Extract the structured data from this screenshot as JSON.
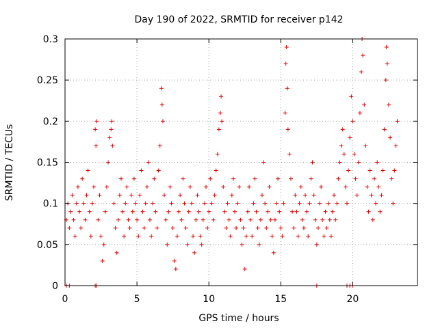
{
  "chart_data": {
    "type": "scatter",
    "title": "Day 190 of 2022, SRMTID for receiver p142",
    "xlabel": "GPS time / hours",
    "ylabel": "SRMTID / TECUs",
    "xlim": [
      0,
      24.5
    ],
    "ylim": [
      0,
      0.3
    ],
    "x_ticks": [
      0,
      5,
      10,
      15,
      20
    ],
    "x_tick_labels": [
      "0",
      "5",
      "10",
      "15",
      "20"
    ],
    "y_ticks": [
      0,
      0.05,
      0.1,
      0.15,
      0.2,
      0.25,
      0.3
    ],
    "y_tick_labels": [
      "0",
      "0.05",
      "0.1",
      "0.15",
      "0.2",
      "0.25",
      "0.3"
    ],
    "grid": true,
    "marker": "+",
    "color": "#dd0000",
    "series": [
      {
        "name": "SRMTID",
        "points": [
          [
            0.1,
            0.08
          ],
          [
            0.2,
            0.1
          ],
          [
            0.3,
            0.07
          ],
          [
            0.4,
            0.09
          ],
          [
            0.5,
            0.11
          ],
          [
            0.6,
            0.08
          ],
          [
            0.7,
            0.06
          ],
          [
            0.8,
            0.1
          ],
          [
            0.9,
            0.12
          ],
          [
            1.0,
            0.09
          ],
          [
            1.1,
            0.07
          ],
          [
            1.2,
            0.13
          ],
          [
            1.3,
            0.1
          ],
          [
            1.4,
            0.08
          ],
          [
            1.5,
            0.11
          ],
          [
            1.6,
            0.14
          ],
          [
            1.7,
            0.09
          ],
          [
            1.8,
            0.06
          ],
          [
            1.9,
            0.1
          ],
          [
            2.0,
            0.12
          ],
          [
            2.1,
            0.19
          ],
          [
            2.15,
            0.17
          ],
          [
            2.2,
            0.2
          ],
          [
            2.3,
            0.08
          ],
          [
            2.4,
            0.11
          ],
          [
            2.5,
            0.06
          ],
          [
            2.6,
            0.03
          ],
          [
            2.7,
            0.05
          ],
          [
            2.8,
            0.09
          ],
          [
            2.9,
            0.12
          ],
          [
            3.0,
            0.15
          ],
          [
            3.1,
            0.18
          ],
          [
            3.2,
            0.19
          ],
          [
            3.25,
            0.2
          ],
          [
            3.3,
            0.17
          ],
          [
            3.4,
            0.1
          ],
          [
            3.5,
            0.07
          ],
          [
            3.6,
            0.04
          ],
          [
            3.7,
            0.08
          ],
          [
            3.8,
            0.11
          ],
          [
            3.9,
            0.13
          ],
          [
            4.0,
            0.09
          ],
          [
            4.1,
            0.06
          ],
          [
            4.2,
            0.1
          ],
          [
            4.3,
            0.12
          ],
          [
            4.4,
            0.08
          ],
          [
            4.5,
            0.07
          ],
          [
            4.6,
            0.11
          ],
          [
            4.7,
            0.09
          ],
          [
            4.8,
            0.13
          ],
          [
            4.9,
            0.1
          ],
          [
            5.0,
            0.08
          ],
          [
            5.1,
            0.06
          ],
          [
            5.2,
            0.11
          ],
          [
            5.3,
            0.14
          ],
          [
            5.4,
            0.09
          ],
          [
            5.5,
            0.07
          ],
          [
            5.6,
            0.1
          ],
          [
            5.7,
            0.12
          ],
          [
            5.8,
            0.15
          ],
          [
            5.9,
            0.08
          ],
          [
            6.0,
            0.06
          ],
          [
            6.1,
            0.1
          ],
          [
            6.2,
            0.13
          ],
          [
            6.3,
            0.09
          ],
          [
            6.4,
            0.07
          ],
          [
            6.5,
            0.14
          ],
          [
            6.6,
            0.17
          ],
          [
            6.7,
            0.24
          ],
          [
            6.75,
            0.22
          ],
          [
            6.8,
            0.2
          ],
          [
            6.9,
            0.11
          ],
          [
            7.0,
            0.08
          ],
          [
            7.1,
            0.05
          ],
          [
            7.2,
            0.09
          ],
          [
            7.3,
            0.12
          ],
          [
            7.4,
            0.1
          ],
          [
            7.5,
            0.07
          ],
          [
            7.6,
            0.03
          ],
          [
            7.7,
            0.02
          ],
          [
            7.8,
            0.06
          ],
          [
            7.9,
            0.09
          ],
          [
            8.0,
            0.11
          ],
          [
            8.1,
            0.08
          ],
          [
            8.2,
            0.13
          ],
          [
            8.3,
            0.1
          ],
          [
            8.4,
            0.07
          ],
          [
            8.5,
            0.05
          ],
          [
            8.6,
            0.09
          ],
          [
            8.7,
            0.12
          ],
          [
            8.8,
            0.1
          ],
          [
            8.9,
            0.06
          ],
          [
            9.0,
            0.04
          ],
          [
            9.1,
            0.08
          ],
          [
            9.2,
            0.11
          ],
          [
            9.3,
            0.09
          ],
          [
            9.4,
            0.06
          ],
          [
            9.5,
            0.05
          ],
          [
            9.6,
            0.08
          ],
          [
            9.7,
            0.1
          ],
          [
            9.8,
            0.12
          ],
          [
            9.9,
            0.07
          ],
          [
            10.0,
            0.09
          ],
          [
            10.1,
            0.13
          ],
          [
            10.2,
            0.1
          ],
          [
            10.3,
            0.08
          ],
          [
            10.4,
            0.11
          ],
          [
            10.5,
            0.14
          ],
          [
            10.6,
            0.16
          ],
          [
            10.7,
            0.19
          ],
          [
            10.8,
            0.21
          ],
          [
            10.85,
            0.23
          ],
          [
            10.9,
            0.2
          ],
          [
            11.0,
            0.12
          ],
          [
            11.1,
            0.09
          ],
          [
            11.2,
            0.07
          ],
          [
            11.3,
            0.1
          ],
          [
            11.4,
            0.08
          ],
          [
            11.5,
            0.06
          ],
          [
            11.6,
            0.11
          ],
          [
            11.7,
            0.13
          ],
          [
            11.8,
            0.09
          ],
          [
            11.9,
            0.07
          ],
          [
            12.0,
            0.1
          ],
          [
            12.1,
            0.12
          ],
          [
            12.2,
            0.08
          ],
          [
            12.3,
            0.05
          ],
          [
            12.4,
            0.07
          ],
          [
            12.5,
            0.02
          ],
          [
            12.6,
            0.06
          ],
          [
            12.7,
            0.09
          ],
          [
            12.8,
            0.12
          ],
          [
            12.9,
            0.08
          ],
          [
            13.0,
            0.06
          ],
          [
            13.1,
            0.1
          ],
          [
            13.2,
            0.13
          ],
          [
            13.3,
            0.09
          ],
          [
            13.4,
            0.07
          ],
          [
            13.5,
            0.05
          ],
          [
            13.6,
            0.08
          ],
          [
            13.7,
            0.11
          ],
          [
            13.8,
            0.15
          ],
          [
            13.9,
            0.1
          ],
          [
            14.0,
            0.07
          ],
          [
            14.1,
            0.09
          ],
          [
            14.2,
            0.12
          ],
          [
            14.3,
            0.08
          ],
          [
            14.4,
            0.06
          ],
          [
            14.5,
            0.04
          ],
          [
            14.6,
            0.08
          ],
          [
            14.7,
            0.1
          ],
          [
            14.8,
            0.13
          ],
          [
            14.9,
            0.09
          ],
          [
            15.0,
            0.07
          ],
          [
            15.1,
            0.06
          ],
          [
            15.2,
            0.1
          ],
          [
            15.3,
            0.21
          ],
          [
            15.35,
            0.27
          ],
          [
            15.4,
            0.29
          ],
          [
            15.45,
            0.24
          ],
          [
            15.5,
            0.19
          ],
          [
            15.6,
            0.16
          ],
          [
            15.7,
            0.13
          ],
          [
            15.8,
            0.09
          ],
          [
            15.9,
            0.07
          ],
          [
            16.0,
            0.11
          ],
          [
            16.1,
            0.09
          ],
          [
            16.2,
            0.06
          ],
          [
            16.3,
            0.1
          ],
          [
            16.4,
            0.12
          ],
          [
            16.5,
            0.08
          ],
          [
            16.6,
            0.07
          ],
          [
            16.7,
            0.11
          ],
          [
            16.8,
            0.09
          ],
          [
            16.9,
            0.06
          ],
          [
            17.0,
            0.1
          ],
          [
            17.1,
            0.13
          ],
          [
            17.2,
            0.15
          ],
          [
            17.3,
            0.11
          ],
          [
            17.4,
            0.08
          ],
          [
            17.5,
            0.05
          ],
          [
            17.6,
            0.07
          ],
          [
            17.7,
            0.1
          ],
          [
            17.8,
            0.12
          ],
          [
            17.9,
            0.08
          ],
          [
            18.0,
            0.06
          ],
          [
            18.1,
            0.09
          ],
          [
            18.2,
            0.07
          ],
          [
            18.3,
            0.1
          ],
          [
            18.4,
            0.08
          ],
          [
            18.5,
            0.06
          ],
          [
            18.6,
            0.09
          ],
          [
            18.7,
            0.11
          ],
          [
            18.8,
            0.08
          ],
          [
            18.9,
            0.1
          ],
          [
            19.0,
            0.13
          ],
          [
            19.1,
            0.15
          ],
          [
            19.2,
            0.17
          ],
          [
            19.3,
            0.19
          ],
          [
            19.4,
            0.16
          ],
          [
            19.5,
            0.12
          ],
          [
            19.6,
            0.1
          ],
          [
            19.7,
            0.14
          ],
          [
            19.8,
            0.18
          ],
          [
            19.9,
            0.23
          ],
          [
            20.0,
            0.2
          ],
          [
            20.1,
            0.16
          ],
          [
            20.2,
            0.13
          ],
          [
            20.3,
            0.11
          ],
          [
            20.4,
            0.15
          ],
          [
            20.5,
            0.21
          ],
          [
            20.6,
            0.26
          ],
          [
            20.65,
            0.3
          ],
          [
            20.7,
            0.28
          ],
          [
            20.8,
            0.22
          ],
          [
            20.9,
            0.17
          ],
          [
            21.0,
            0.12
          ],
          [
            21.1,
            0.09
          ],
          [
            21.2,
            0.14
          ],
          [
            21.3,
            0.11
          ],
          [
            21.4,
            0.08
          ],
          [
            21.5,
            0.13
          ],
          [
            21.6,
            0.1
          ],
          [
            21.7,
            0.15
          ],
          [
            21.8,
            0.12
          ],
          [
            21.9,
            0.09
          ],
          [
            22.0,
            0.11
          ],
          [
            22.1,
            0.14
          ],
          [
            22.2,
            0.19
          ],
          [
            22.3,
            0.25
          ],
          [
            22.35,
            0.29
          ],
          [
            22.4,
            0.27
          ],
          [
            22.5,
            0.22
          ],
          [
            22.6,
            0.18
          ],
          [
            22.7,
            0.13
          ],
          [
            22.8,
            0.1
          ],
          [
            22.9,
            0.14
          ],
          [
            23.0,
            0.17
          ],
          [
            23.1,
            0.2
          ]
        ]
      }
    ],
    "zero_markers_x": [
      0.1,
      0.3,
      2.1,
      2.2,
      17.5,
      19.6,
      19.8,
      20.0
    ]
  }
}
